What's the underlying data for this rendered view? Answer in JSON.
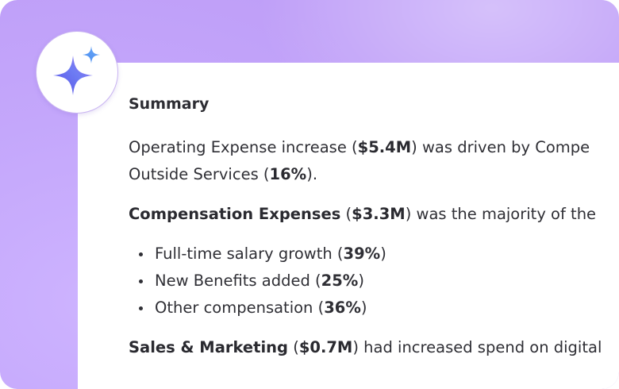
{
  "summary": {
    "title": "Summary",
    "p1": {
      "t1": "Operating Expense increase (",
      "b1": "$5.4M",
      "t2": ") was driven by Compe",
      "t3": "Outside Services (",
      "b2": "16%",
      "t4": ")."
    },
    "p2": {
      "b1": "Compensation Expenses",
      "t1": " (",
      "b2": "$3.3M",
      "t2": ") was the majority of the"
    },
    "bullets": [
      {
        "text": "Full-time salary growth (",
        "value": "39%",
        "close": ")"
      },
      {
        "text": "New Benefits added (",
        "value": "25%",
        "close": ")"
      },
      {
        "text": "Other compensation (",
        "value": "36%",
        "close": ")"
      }
    ],
    "p3": {
      "b1": "Sales & Marketing",
      "t1": " (",
      "b2": "$0.7M",
      "t2": ") had increased spend on digital"
    }
  },
  "icons": {
    "avatar": "sparkle-icon"
  },
  "colors": {
    "background": "#c6aaf9",
    "card": "#ffffff",
    "text": "#2f2f35",
    "sparkle_start": "#4f6bf0",
    "sparkle_end": "#a36ff2"
  }
}
